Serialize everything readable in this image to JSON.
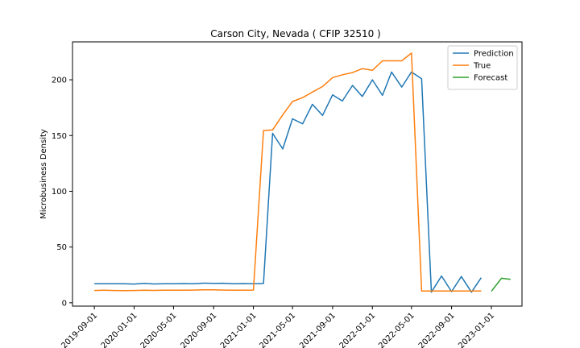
{
  "chart_data": {
    "type": "line",
    "title": "Carson City, Nevada ( CFIP 32510 )",
    "xlabel": "",
    "ylabel": "Microbusiness Density",
    "x_tick_labels": [
      "2019-09-01",
      "2020-01-01",
      "2020-05-01",
      "2020-09-01",
      "2021-01-01",
      "2021-05-01",
      "2021-09-01",
      "2022-01-01",
      "2022-05-01",
      "2022-09-01",
      "2023-01-01"
    ],
    "y_ticks": [
      0,
      50,
      100,
      150,
      200
    ],
    "ylim": [
      -3,
      234
    ],
    "xlim": [
      "2019-06-26",
      "2023-04-05"
    ],
    "grid": false,
    "legend_position": "top-right",
    "series": [
      {
        "name": "Prediction",
        "color": "#1f77b4",
        "points": [
          [
            "2019-09-01",
            17.0
          ],
          [
            "2019-10-01",
            17.0
          ],
          [
            "2019-11-01",
            17.0
          ],
          [
            "2019-12-01",
            17.0
          ],
          [
            "2020-01-01",
            16.8
          ],
          [
            "2020-02-01",
            17.4
          ],
          [
            "2020-03-01",
            16.9
          ],
          [
            "2020-04-01",
            17.1
          ],
          [
            "2020-05-01",
            17.1
          ],
          [
            "2020-06-01",
            17.2
          ],
          [
            "2020-07-01",
            17.1
          ],
          [
            "2020-08-01",
            17.6
          ],
          [
            "2020-09-01",
            17.4
          ],
          [
            "2020-10-01",
            17.5
          ],
          [
            "2020-11-01",
            17.0
          ],
          [
            "2020-12-01",
            17.2
          ],
          [
            "2021-01-01",
            17.0
          ],
          [
            "2021-02-01",
            17.3
          ],
          [
            "2021-03-01",
            152.0
          ],
          [
            "2021-04-01",
            138.0
          ],
          [
            "2021-05-01",
            165.0
          ],
          [
            "2021-06-01",
            160.5
          ],
          [
            "2021-07-01",
            178.0
          ],
          [
            "2021-08-01",
            168.0
          ],
          [
            "2021-09-01",
            186.5
          ],
          [
            "2021-10-01",
            181.0
          ],
          [
            "2021-11-01",
            195.0
          ],
          [
            "2021-12-01",
            185.0
          ],
          [
            "2022-01-01",
            200.0
          ],
          [
            "2022-02-01",
            186.0
          ],
          [
            "2022-03-01",
            207.0
          ],
          [
            "2022-04-01",
            193.5
          ],
          [
            "2022-05-01",
            207.0
          ],
          [
            "2022-06-01",
            201.0
          ],
          [
            "2022-07-01",
            9.5
          ],
          [
            "2022-08-01",
            24.0
          ],
          [
            "2022-09-01",
            10.0
          ],
          [
            "2022-10-01",
            23.5
          ],
          [
            "2022-11-01",
            9.5
          ],
          [
            "2022-12-01",
            22.5
          ]
        ]
      },
      {
        "name": "True",
        "color": "#ff7f0e",
        "points": [
          [
            "2019-09-01",
            11.0
          ],
          [
            "2019-10-01",
            11.3
          ],
          [
            "2019-11-01",
            11.0
          ],
          [
            "2019-12-01",
            10.9
          ],
          [
            "2020-01-01",
            11.0
          ],
          [
            "2020-02-01",
            11.2
          ],
          [
            "2020-03-01",
            11.1
          ],
          [
            "2020-04-01",
            11.2
          ],
          [
            "2020-05-01",
            11.3
          ],
          [
            "2020-06-01",
            11.2
          ],
          [
            "2020-07-01",
            11.4
          ],
          [
            "2020-08-01",
            11.6
          ],
          [
            "2020-09-01",
            11.6
          ],
          [
            "2020-10-01",
            11.4
          ],
          [
            "2020-11-01",
            11.3
          ],
          [
            "2020-12-01",
            11.3
          ],
          [
            "2021-01-01",
            11.4
          ],
          [
            "2021-02-01",
            154.5
          ],
          [
            "2021-03-01",
            155.0
          ],
          [
            "2021-04-01",
            168.5
          ],
          [
            "2021-05-01",
            180.5
          ],
          [
            "2021-06-01",
            184.0
          ],
          [
            "2021-07-01",
            189.0
          ],
          [
            "2021-08-01",
            194.0
          ],
          [
            "2021-09-01",
            202.0
          ],
          [
            "2021-10-01",
            204.5
          ],
          [
            "2021-11-01",
            206.5
          ],
          [
            "2021-12-01",
            210.0
          ],
          [
            "2022-01-01",
            208.5
          ],
          [
            "2022-02-01",
            217.0
          ],
          [
            "2022-03-01",
            217.0
          ],
          [
            "2022-04-01",
            217.0
          ],
          [
            "2022-05-01",
            224.0
          ],
          [
            "2022-06-01",
            10.5
          ],
          [
            "2022-07-01",
            10.5
          ],
          [
            "2022-08-01",
            10.5
          ],
          [
            "2022-09-01",
            10.5
          ],
          [
            "2022-10-01",
            10.5
          ],
          [
            "2022-11-01",
            10.6
          ],
          [
            "2022-12-01",
            10.6
          ]
        ]
      },
      {
        "name": "Forecast",
        "color": "#2ca02c",
        "points": [
          [
            "2023-01-01",
            10.3
          ],
          [
            "2023-02-01",
            22.0
          ],
          [
            "2023-03-01",
            21.0
          ]
        ]
      }
    ]
  }
}
